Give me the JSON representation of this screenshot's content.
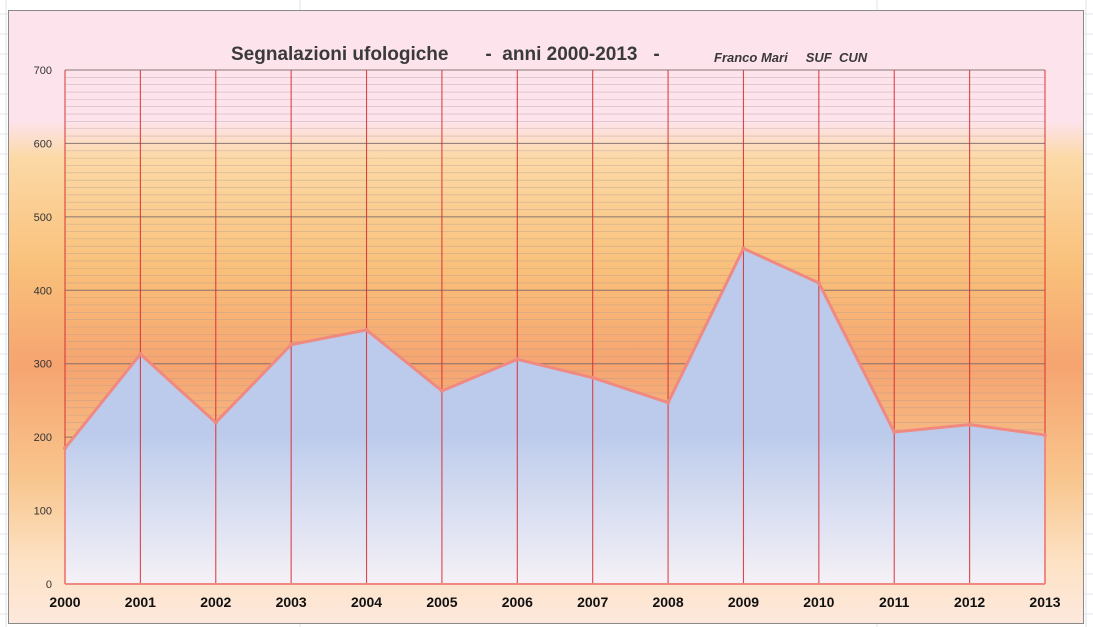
{
  "chart_data": {
    "type": "area",
    "title": "Segnalazioni ufologiche       -  anni 2000-2013   -",
    "subtitle": "Franco Mari     SUF  CUN",
    "x": [
      "2000",
      "2001",
      "2002",
      "2003",
      "2004",
      "2005",
      "2006",
      "2007",
      "2008",
      "2009",
      "2010",
      "2011",
      "2012",
      "2013"
    ],
    "series": [
      {
        "values": [
          185,
          313,
          220,
          326,
          346,
          263,
          306,
          281,
          247,
          457,
          410,
          207,
          217,
          203
        ]
      }
    ],
    "ylim": [
      0,
      700
    ],
    "yticks": [
      "0",
      "100",
      "200",
      "300",
      "400",
      "500",
      "600",
      "700"
    ],
    "grid": true,
    "legend": "none",
    "colors": {
      "area_fill_top": "#bccbec",
      "area_fill_bottom": "#f5f1f6",
      "area_line": "#f08a80",
      "vertical_lines": "#d9282c",
      "major_grid": "#7b6a68",
      "minor_grid": "#a89895",
      "title": "#3a3a3a"
    }
  }
}
